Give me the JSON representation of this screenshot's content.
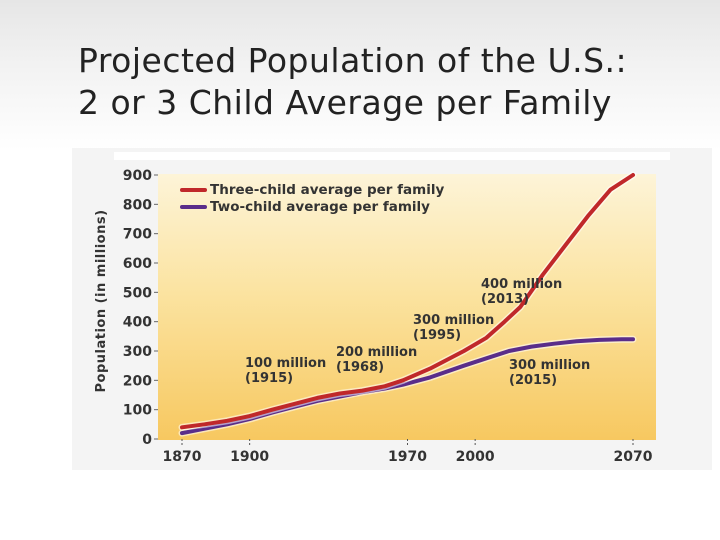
{
  "slide": {
    "title_line1": "Projected Population of the U.S.:",
    "title_line2": "2 or 3 Child Average per Family"
  },
  "chart_data": {
    "type": "line",
    "ylabel": "Population (in millions)",
    "ylim": [
      0,
      900
    ],
    "xlim": [
      1870,
      2070
    ],
    "y_ticks": [
      "900",
      "800",
      "700",
      "600",
      "500",
      "400",
      "300",
      "200",
      "100",
      "0"
    ],
    "x_ticks": [
      "1870",
      "1900",
      "1970",
      "2000",
      "2070"
    ],
    "legend_position": "top-left",
    "series": [
      {
        "name": "Three-child average per family",
        "color": "#c0282a",
        "x": [
          1870,
          1880,
          1890,
          1900,
          1910,
          1920,
          1930,
          1940,
          1950,
          1960,
          1968,
          1980,
          1995,
          2005,
          2013,
          2020,
          2030,
          2040,
          2050,
          2060,
          2070
        ],
        "y": [
          40,
          50,
          62,
          78,
          100,
          120,
          140,
          155,
          165,
          180,
          200,
          240,
          300,
          345,
          400,
          450,
          560,
          660,
          760,
          850,
          900
        ]
      },
      {
        "name": "Two-child average per family",
        "color": "#5a2d8a",
        "x": [
          1870,
          1880,
          1890,
          1900,
          1910,
          1920,
          1930,
          1940,
          1950,
          1960,
          1968,
          1980,
          1995,
          2005,
          2015,
          2025,
          2035,
          2045,
          2055,
          2065,
          2070
        ],
        "y": [
          20,
          35,
          50,
          68,
          90,
          110,
          130,
          145,
          160,
          172,
          185,
          210,
          250,
          275,
          300,
          315,
          325,
          333,
          338,
          340,
          340
        ]
      }
    ],
    "annotations": [
      {
        "line1": "100 million",
        "line2": "(1915)"
      },
      {
        "line1": "200 million",
        "line2": "(1968)"
      },
      {
        "line1": "300 million",
        "line2": "(1995)"
      },
      {
        "line1": "400 million",
        "line2": "(2013)"
      },
      {
        "line1": "300 million",
        "line2": "(2015)"
      }
    ]
  }
}
